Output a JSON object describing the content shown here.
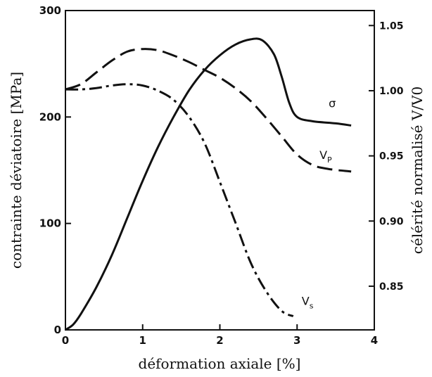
{
  "chart_data": {
    "type": "line",
    "xlabel": "déformation axiale [%]",
    "ylabel": "contrainte déviatoire [MPa]",
    "y2label": "célérité normalisé V/V0",
    "xlim": [
      0,
      4
    ],
    "ylim": [
      0,
      300
    ],
    "y2lim": [
      0.8165,
      1.0615
    ],
    "x_ticks": [
      "0",
      "1",
      "2",
      "3",
      "4"
    ],
    "y_ticks": [
      "0",
      "100",
      "200",
      "300"
    ],
    "y2_ticks": [
      "0.85",
      "0.90",
      "0.95",
      "1.00",
      "1.05"
    ],
    "grid": false,
    "series": [
      {
        "name": "σ",
        "axis": "left",
        "style": "solid",
        "x": [
          0,
          0.1,
          0.2,
          0.4,
          0.6,
          0.8,
          1.0,
          1.2,
          1.4,
          1.6,
          1.8,
          2.0,
          2.2,
          2.4,
          2.55,
          2.7,
          2.8,
          2.9,
          3.0,
          3.2,
          3.5,
          3.7
        ],
        "y": [
          0,
          5,
          15,
          40,
          70,
          105,
          140,
          172,
          200,
          225,
          244,
          258,
          268,
          273,
          272,
          259,
          238,
          213,
          200,
          196,
          194,
          192
        ]
      },
      {
        "name": "V",
        "name_subscript": "P",
        "axis": "right",
        "style": "dashed",
        "x": [
          0,
          0.2,
          0.4,
          0.6,
          0.8,
          1.0,
          1.2,
          1.4,
          1.6,
          1.8,
          2.0,
          2.2,
          2.4,
          2.6,
          2.8,
          3.0,
          3.2,
          3.4,
          3.7
        ],
        "y": [
          1.001,
          1.005,
          1.014,
          1.023,
          1.03,
          1.032,
          1.031,
          1.027,
          1.022,
          1.016,
          1.01,
          1.002,
          0.992,
          0.979,
          0.965,
          0.951,
          0.943,
          0.94,
          0.938
        ]
      },
      {
        "name": "V",
        "name_subscript": "s",
        "axis": "right",
        "style": "dashdot",
        "x": [
          0,
          0.2,
          0.4,
          0.6,
          0.8,
          1.0,
          1.2,
          1.4,
          1.6,
          1.8,
          2.0,
          2.2,
          2.4,
          2.6,
          2.8,
          2.95
        ],
        "y": [
          1.001,
          1.001,
          1.002,
          1.004,
          1.005,
          1.004,
          1.0,
          0.993,
          0.98,
          0.96,
          0.93,
          0.899,
          0.868,
          0.846,
          0.831,
          0.827
        ]
      }
    ]
  }
}
